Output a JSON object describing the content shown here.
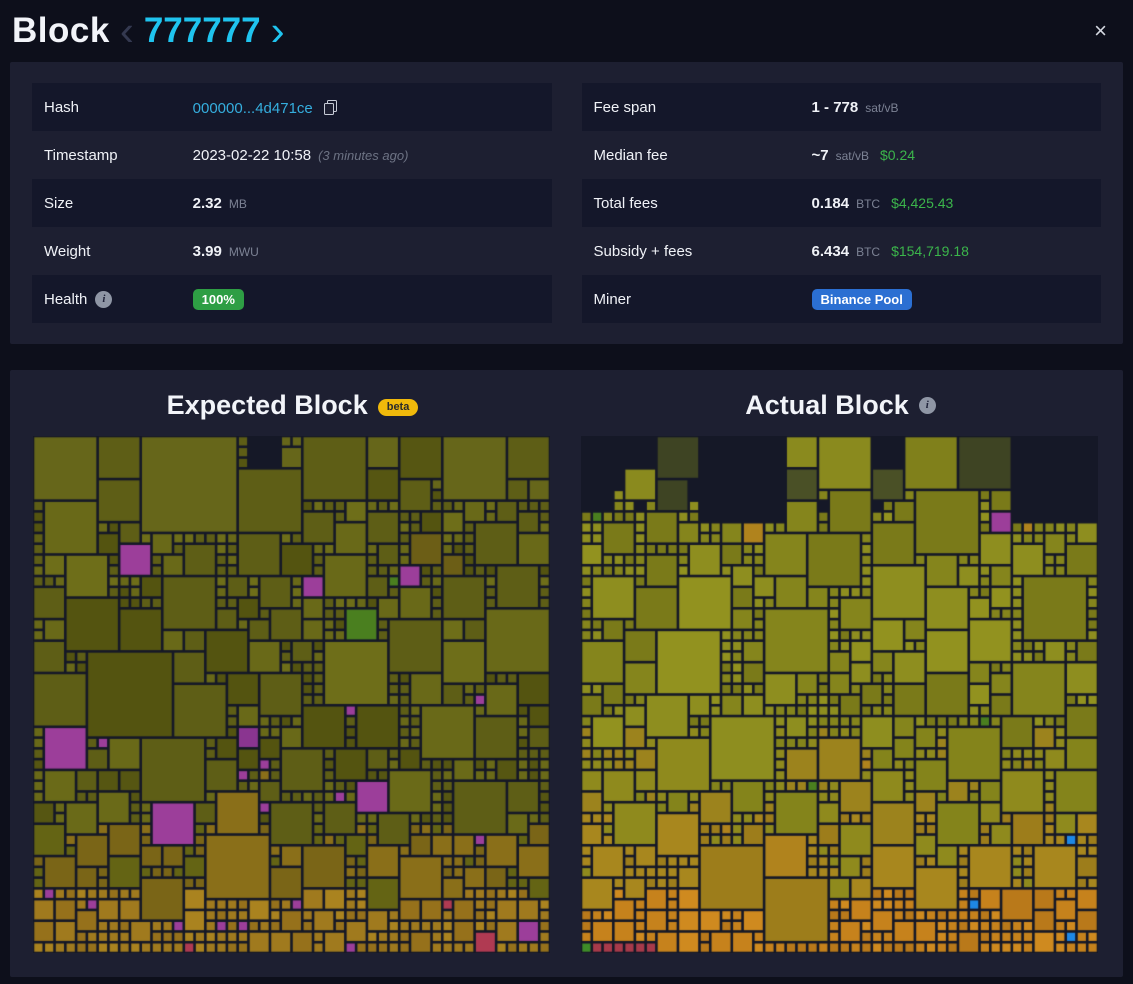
{
  "header": {
    "title": "Block",
    "block_height": "777777",
    "prev_icon": "‹",
    "next_icon": "›",
    "close_icon": "×"
  },
  "icons": {
    "info": "i"
  },
  "details": {
    "left": [
      {
        "label": "Hash",
        "value": "000000...4d471ce"
      },
      {
        "label": "Timestamp",
        "value": "2023-02-22 10:58",
        "secondary": "(3 minutes ago)"
      },
      {
        "label": "Size",
        "value": "2.32",
        "unit": "MB"
      },
      {
        "label": "Weight",
        "value": "3.99",
        "unit": "MWU"
      },
      {
        "label": "Health",
        "badge": "100%",
        "badge_color": "#2e9e44"
      }
    ],
    "right": [
      {
        "label": "Fee span",
        "value": "1 - 778",
        "unit": "sat/vB"
      },
      {
        "label": "Median fee",
        "value": "~7",
        "unit": "sat/vB",
        "fiat": "$0.24"
      },
      {
        "label": "Total fees",
        "value": "0.184",
        "unit": "BTC",
        "fiat": "$4,425.43"
      },
      {
        "label": "Subsidy + fees",
        "value": "6.434",
        "unit": "BTC",
        "fiat": "$154,719.18"
      },
      {
        "label": "Miner",
        "badge": "Binance Pool",
        "badge_color": "#2b6fd2"
      }
    ]
  },
  "viz": {
    "expected_title": "Expected Block",
    "beta_label": "beta",
    "actual_title": "Actual Block"
  },
  "chart_data": [
    {
      "type": "treemap",
      "name": "expected-block",
      "title": "Expected Block",
      "description": "Transactions as squares sized by vsize, colored by fee rate",
      "seed": 777001,
      "grid_cols": 48,
      "background": "#151827",
      "gap": 2.6,
      "skip_bands": [
        {
          "until": 0.09,
          "p": 0.1
        }
      ],
      "bands": [
        {
          "until": 0.1,
          "base": [
            [
              "#5e5e16",
              5
            ],
            [
              "#66661a",
              3
            ],
            [
              "#565612",
              2
            ]
          ],
          "accents": []
        },
        {
          "until": 0.45,
          "base": [
            [
              "#5e5e16",
              5
            ],
            [
              "#696918",
              3
            ],
            [
              "#545410",
              2
            ],
            [
              "#6e6e19",
              2
            ]
          ],
          "accents": [
            [
              "#9c3e9a",
              0.015
            ],
            [
              "#6c5e16",
              0.02
            ],
            [
              "#4a7f1f",
              0.006
            ]
          ]
        },
        {
          "until": 0.62,
          "base": [
            [
              "#5e5e16",
              5
            ],
            [
              "#696918",
              3
            ],
            [
              "#545410",
              2
            ]
          ],
          "accents": [
            [
              "#9c3e9a",
              0.065
            ],
            [
              "#8a3590",
              0.02
            ]
          ]
        },
        {
          "until": 0.74,
          "base": [
            [
              "#5e5e16",
              4
            ],
            [
              "#6a6a18",
              3
            ],
            [
              "#565612",
              2
            ]
          ],
          "accents": [
            [
              "#9c3e9a",
              0.02
            ],
            [
              "#8a6f19",
              0.03
            ]
          ]
        },
        {
          "until": 0.86,
          "base": [
            [
              "#7a6517",
              4
            ],
            [
              "#8a6f19",
              3
            ],
            [
              "#646414",
              3
            ]
          ],
          "accents": [
            [
              "#9c3e9a",
              0.03
            ]
          ]
        },
        {
          "until": 1.01,
          "base": [
            [
              "#a07a1e",
              5
            ],
            [
              "#96711b",
              3
            ],
            [
              "#aa831f",
              2
            ]
          ],
          "accents": [
            [
              "#9c3e9a",
              0.06
            ],
            [
              "#b03a52",
              0.01
            ]
          ]
        }
      ],
      "size_bands": [
        {
          "until": 0.1,
          "sizes": [
            [
              9,
              4
            ],
            [
              8,
              6
            ],
            [
              6,
              16
            ],
            [
              5,
              14
            ],
            [
              4,
              22
            ],
            [
              3,
              14
            ],
            [
              2,
              10
            ],
            [
              1,
              14
            ]
          ]
        },
        {
          "until": 0.74,
          "sizes": [
            [
              9,
              1
            ],
            [
              8,
              1.5
            ],
            [
              6,
              4
            ],
            [
              5,
              5
            ],
            [
              4,
              8
            ],
            [
              3,
              9
            ],
            [
              2,
              13
            ],
            [
              1,
              58
            ]
          ]
        },
        {
          "until": 0.86,
          "sizes": [
            [
              6,
              2
            ],
            [
              5,
              3
            ],
            [
              4,
              7
            ],
            [
              3,
              10
            ],
            [
              2,
              18
            ],
            [
              1,
              60
            ]
          ]
        },
        {
          "until": 1.01,
          "sizes": [
            [
              3,
              4
            ],
            [
              2,
              26
            ],
            [
              1,
              70
            ]
          ]
        }
      ]
    },
    {
      "type": "treemap",
      "name": "actual-block",
      "title": "Actual Block",
      "description": "Mined transactions as squares sized by vsize, colored by fee rate",
      "seed": 777002,
      "grid_cols": 48,
      "background": "#151827",
      "gap": 2.6,
      "skip_bands": [
        {
          "until": 0.1,
          "p": 0.32
        },
        {
          "until": 0.16,
          "p": 0.08
        }
      ],
      "bands": [
        {
          "until": 0.1,
          "base": [
            [
              "#3e4423",
              4
            ],
            [
              "#4a5026",
              2
            ],
            [
              "#8a8a1e",
              4
            ],
            [
              "#80801b",
              2
            ]
          ],
          "accents": []
        },
        {
          "until": 0.55,
          "base": [
            [
              "#85851c",
              5
            ],
            [
              "#8e8e1f",
              3
            ],
            [
              "#7a7a19",
              3
            ],
            [
              "#92921f",
              1
            ]
          ],
          "accents": [
            [
              "#4a7f1f",
              0.015
            ],
            [
              "#b0831d",
              0.008
            ],
            [
              "#9c3e9a",
              0.002
            ]
          ]
        },
        {
          "until": 0.72,
          "base": [
            [
              "#8f8a1d",
              4
            ],
            [
              "#9c831d",
              3
            ],
            [
              "#84841b",
              3
            ]
          ],
          "accents": [
            [
              "#4a7f1f",
              0.01
            ],
            [
              "#b0831d",
              0.012
            ]
          ]
        },
        {
          "until": 0.86,
          "base": [
            [
              "#a8871e",
              5
            ],
            [
              "#9d7d1b",
              3
            ],
            [
              "#8f8a1d",
              2
            ]
          ],
          "accents": [
            [
              "#1e88e5",
              0.004
            ],
            [
              "#b0831d",
              0.012
            ]
          ]
        },
        {
          "until": 1.01,
          "base": [
            [
              "#c6821c",
              5
            ],
            [
              "#cf8a1f",
              3
            ],
            [
              "#b9791a",
              2
            ]
          ],
          "accents": [
            [
              "#1e88e5",
              0.006
            ]
          ]
        }
      ],
      "size_bands": [
        {
          "until": 0.1,
          "sizes": [
            [
              9,
              5
            ],
            [
              8,
              6
            ],
            [
              6,
              15
            ],
            [
              5,
              14
            ],
            [
              4,
              20
            ],
            [
              3,
              14
            ],
            [
              2,
              12
            ],
            [
              1,
              14
            ]
          ]
        },
        {
          "until": 0.72,
          "sizes": [
            [
              9,
              1
            ],
            [
              8,
              1.5
            ],
            [
              6,
              4
            ],
            [
              5,
              5
            ],
            [
              4,
              8
            ],
            [
              3,
              9
            ],
            [
              2,
              13
            ],
            [
              1,
              58
            ]
          ]
        },
        {
          "until": 0.86,
          "sizes": [
            [
              8,
              1
            ],
            [
              6,
              3
            ],
            [
              5,
              4
            ],
            [
              4,
              8
            ],
            [
              3,
              10
            ],
            [
              2,
              16
            ],
            [
              1,
              58
            ]
          ]
        },
        {
          "until": 1.01,
          "sizes": [
            [
              3,
              3
            ],
            [
              2,
              24
            ],
            [
              1,
              73
            ]
          ]
        }
      ],
      "last_row_left": {
        "x_max": 0.17,
        "colors": [
          "#3f8c28",
          "#a83a4a"
        ]
      }
    }
  ]
}
